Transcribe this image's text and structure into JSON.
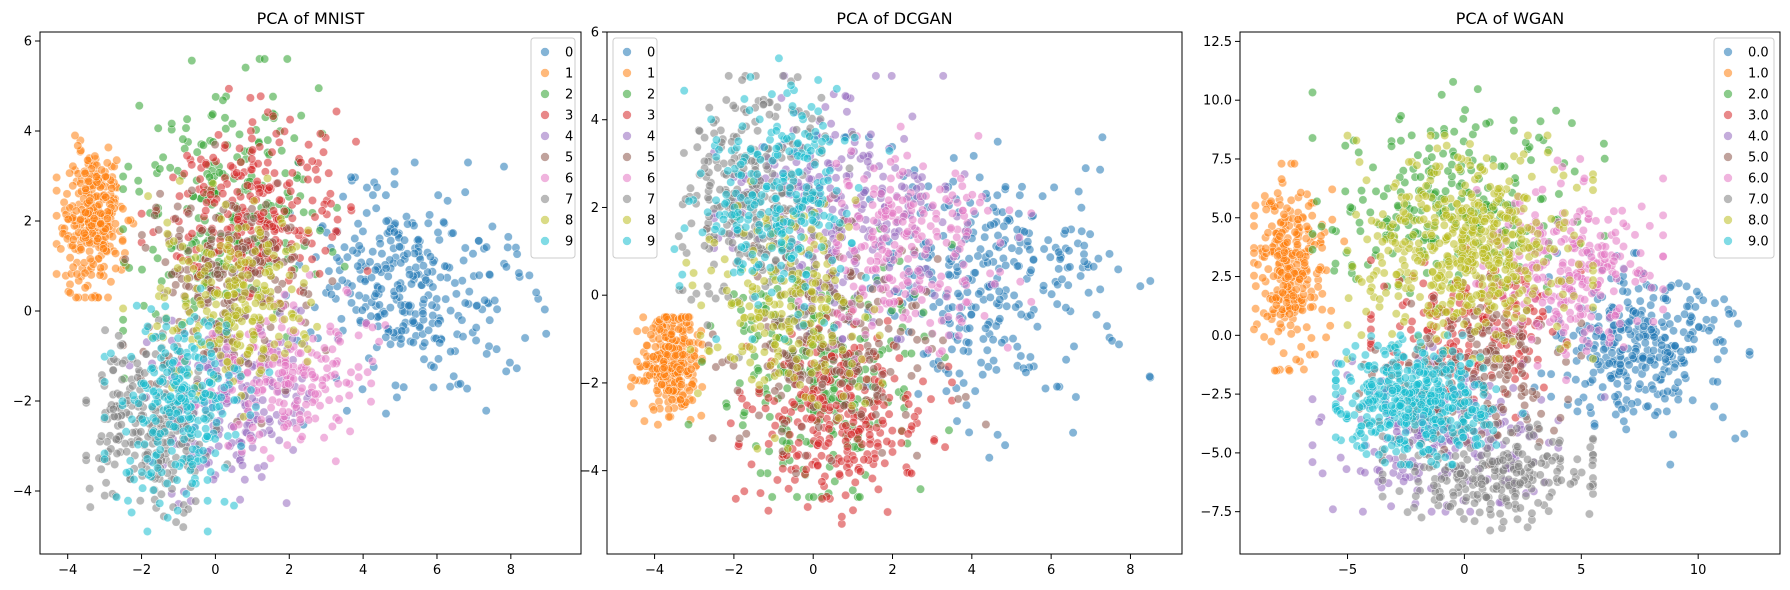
{
  "colors": [
    "#1f77b4",
    "#ff7f0e",
    "#2ca02c",
    "#d62728",
    "#9467bd",
    "#8c564b",
    "#e377c2",
    "#7f7f7f",
    "#bcbd22",
    "#17becf"
  ],
  "chart_data": [
    {
      "type": "scatter",
      "title": "PCA of MNIST",
      "xlabel": "",
      "ylabel": "",
      "xlim": [
        -4.75,
        9.9
      ],
      "ylim": [
        -5.4,
        6.2
      ],
      "xticks": [
        -4,
        -2,
        0,
        2,
        4,
        6,
        8
      ],
      "yticks": [
        -4,
        -2,
        0,
        2,
        4,
        6
      ],
      "legend_position": "top-right",
      "grid": false,
      "series": [
        {
          "name": "0",
          "center": [
            5.2,
            0.6
          ],
          "spread": [
            1.4,
            1.1
          ],
          "count": 320,
          "min": [
            1.0,
            -3.0
          ],
          "max": [
            9.3,
            3.3
          ]
        },
        {
          "name": "1",
          "center": [
            -3.3,
            2.0
          ],
          "spread": [
            0.38,
            0.75
          ],
          "count": 320,
          "min": [
            -4.3,
            0.3
          ],
          "max": [
            -2.0,
            3.9
          ]
        },
        {
          "name": "2",
          "center": [
            0.3,
            2.3
          ],
          "spread": [
            1.3,
            1.4
          ],
          "count": 240,
          "min": [
            -2.5,
            -1.5
          ],
          "max": [
            3.5,
            5.6
          ]
        },
        {
          "name": "3",
          "center": [
            1.0,
            2.2
          ],
          "spread": [
            1.1,
            1.0
          ],
          "count": 260,
          "min": [
            -2.0,
            -1.0
          ],
          "max": [
            4.2,
            5.1
          ]
        },
        {
          "name": "4",
          "center": [
            0.5,
            -2.0
          ],
          "spread": [
            1.0,
            1.1
          ],
          "count": 200,
          "min": [
            -2.5,
            -4.9
          ],
          "max": [
            3.8,
            1.5
          ]
        },
        {
          "name": "5",
          "center": [
            0.3,
            0.5
          ],
          "spread": [
            1.1,
            1.0
          ],
          "count": 200,
          "min": [
            -2.5,
            -2.5
          ],
          "max": [
            4.0,
            4.2
          ]
        },
        {
          "name": "6",
          "center": [
            2.0,
            -1.5
          ],
          "spread": [
            1.1,
            0.8
          ],
          "count": 200,
          "min": [
            -1.0,
            -4.0
          ],
          "max": [
            4.6,
            1.5
          ]
        },
        {
          "name": "7",
          "center": [
            -1.7,
            -2.6
          ],
          "spread": [
            0.75,
            0.9
          ],
          "count": 260,
          "min": [
            -3.5,
            -4.9
          ],
          "max": [
            0.8,
            0.0
          ]
        },
        {
          "name": "8",
          "center": [
            0.5,
            0.3
          ],
          "spread": [
            1.0,
            1.0
          ],
          "count": 220,
          "min": [
            -2.5,
            -3.0
          ],
          "max": [
            4.0,
            3.5
          ]
        },
        {
          "name": "9",
          "center": [
            -0.8,
            -2.2
          ],
          "spread": [
            0.8,
            1.0
          ],
          "count": 260,
          "min": [
            -3.0,
            -4.9
          ],
          "max": [
            3.0,
            0.5
          ]
        }
      ]
    },
    {
      "type": "scatter",
      "title": "PCA of DCGAN",
      "xlabel": "",
      "ylabel": "",
      "xlim": [
        -5.2,
        9.3
      ],
      "ylim": [
        -5.9,
        6.0
      ],
      "xticks": [
        -4,
        -2,
        0,
        2,
        4,
        6,
        8
      ],
      "yticks": [
        -4,
        -2,
        0,
        2,
        4,
        6
      ],
      "legend_position": "top-left",
      "grid": false,
      "series": [
        {
          "name": "0",
          "center": [
            4.5,
            0.3
          ],
          "spread": [
            1.6,
            1.4
          ],
          "count": 320,
          "min": [
            0.5,
            -3.8
          ],
          "max": [
            8.5,
            3.6
          ]
        },
        {
          "name": "1",
          "center": [
            -3.6,
            -1.5
          ],
          "spread": [
            0.35,
            0.6
          ],
          "count": 300,
          "min": [
            -4.6,
            -3.0
          ],
          "max": [
            -2.8,
            -0.5
          ]
        },
        {
          "name": "2",
          "center": [
            0.2,
            -1.8
          ],
          "spread": [
            1.2,
            1.4
          ],
          "count": 260,
          "min": [
            -3.2,
            -4.6
          ],
          "max": [
            3.5,
            2.5
          ]
        },
        {
          "name": "3",
          "center": [
            0.6,
            -2.8
          ],
          "spread": [
            1.0,
            1.0
          ],
          "count": 280,
          "min": [
            -2.5,
            -5.3
          ],
          "max": [
            3.5,
            0.5
          ]
        },
        {
          "name": "4",
          "center": [
            0.5,
            2.0
          ],
          "spread": [
            1.3,
            1.3
          ],
          "count": 240,
          "min": [
            -2.5,
            -1.0
          ],
          "max": [
            4.5,
            5.0
          ]
        },
        {
          "name": "5",
          "center": [
            0.5,
            -1.0
          ],
          "spread": [
            1.3,
            1.4
          ],
          "count": 200,
          "min": [
            -3.0,
            -4.5
          ],
          "max": [
            5.0,
            3.0
          ]
        },
        {
          "name": "6",
          "center": [
            2.3,
            1.0
          ],
          "spread": [
            1.3,
            1.1
          ],
          "count": 240,
          "min": [
            -1.0,
            -2.5
          ],
          "max": [
            5.5,
            4.0
          ]
        },
        {
          "name": "7",
          "center": [
            -1.5,
            2.2
          ],
          "spread": [
            0.9,
            1.3
          ],
          "count": 300,
          "min": [
            -3.5,
            -2.5
          ],
          "max": [
            1.0,
            5.0
          ]
        },
        {
          "name": "8",
          "center": [
            -0.6,
            -0.4
          ],
          "spread": [
            1.1,
            1.1
          ],
          "count": 200,
          "min": [
            -3.5,
            -3.5
          ],
          "max": [
            3.5,
            3.0
          ]
        },
        {
          "name": "9",
          "center": [
            -0.8,
            2.3
          ],
          "spread": [
            1.0,
            1.2
          ],
          "count": 260,
          "min": [
            -3.5,
            -1.0
          ],
          "max": [
            2.0,
            5.4
          ]
        }
      ]
    },
    {
      "type": "scatter",
      "title": "PCA of WGAN",
      "xlabel": "",
      "ylabel": "",
      "xlim": [
        -9.6,
        13.5
      ],
      "ylim": [
        -9.3,
        12.9
      ],
      "xticks": [
        -5,
        0,
        5,
        10
      ],
      "yticks": [
        -7.5,
        -5.0,
        -2.5,
        0.0,
        2.5,
        5.0,
        7.5,
        10.0,
        12.5
      ],
      "legend_position": "top-right",
      "grid": false,
      "series": [
        {
          "name": "0.0",
          "center": [
            7.6,
            -0.5
          ],
          "spread": [
            1.9,
            1.6
          ],
          "count": 320,
          "min": [
            3.0,
            -5.5
          ],
          "max": [
            12.2,
            3.5
          ]
        },
        {
          "name": "1.0",
          "center": [
            -7.5,
            2.8
          ],
          "spread": [
            0.75,
            1.7
          ],
          "count": 300,
          "min": [
            -9.0,
            -1.5
          ],
          "max": [
            -5.0,
            7.3
          ]
        },
        {
          "name": "2.0",
          "center": [
            -0.5,
            5.6
          ],
          "spread": [
            2.6,
            2.0
          ],
          "count": 240,
          "min": [
            -6.5,
            0.5
          ],
          "max": [
            6.0,
            11.9
          ]
        },
        {
          "name": "3.0",
          "center": [
            0.5,
            0.3
          ],
          "spread": [
            2.0,
            1.5
          ],
          "count": 180,
          "min": [
            -4.0,
            -3.5
          ],
          "max": [
            5.0,
            4.0
          ]
        },
        {
          "name": "4.0",
          "center": [
            -1.0,
            -4.2
          ],
          "spread": [
            2.3,
            1.6
          ],
          "count": 220,
          "min": [
            -6.5,
            -7.5
          ],
          "max": [
            6.0,
            -0.5
          ]
        },
        {
          "name": "5.0",
          "center": [
            0.5,
            -1.5
          ],
          "spread": [
            2.0,
            1.5
          ],
          "count": 180,
          "min": [
            -4.5,
            -5.5
          ],
          "max": [
            5.0,
            2.5
          ]
        },
        {
          "name": "6.0",
          "center": [
            4.5,
            2.7
          ],
          "spread": [
            1.8,
            1.7
          ],
          "count": 260,
          "min": [
            0.5,
            -2.0
          ],
          "max": [
            8.5,
            7.5
          ]
        },
        {
          "name": "7.0",
          "center": [
            1.0,
            -5.7
          ],
          "spread": [
            2.2,
            1.1
          ],
          "count": 260,
          "min": [
            -3.5,
            -8.3
          ],
          "max": [
            5.5,
            -2.5
          ]
        },
        {
          "name": "8.0",
          "center": [
            0.0,
            3.6
          ],
          "spread": [
            2.2,
            2.0
          ],
          "count": 520,
          "min": [
            -5.0,
            -1.0
          ],
          "max": [
            5.5,
            8.5
          ]
        },
        {
          "name": "9.0",
          "center": [
            -2.0,
            -2.8
          ],
          "spread": [
            1.7,
            1.2
          ],
          "count": 440,
          "min": [
            -5.5,
            -5.5
          ],
          "max": [
            2.5,
            0.0
          ]
        }
      ]
    }
  ]
}
